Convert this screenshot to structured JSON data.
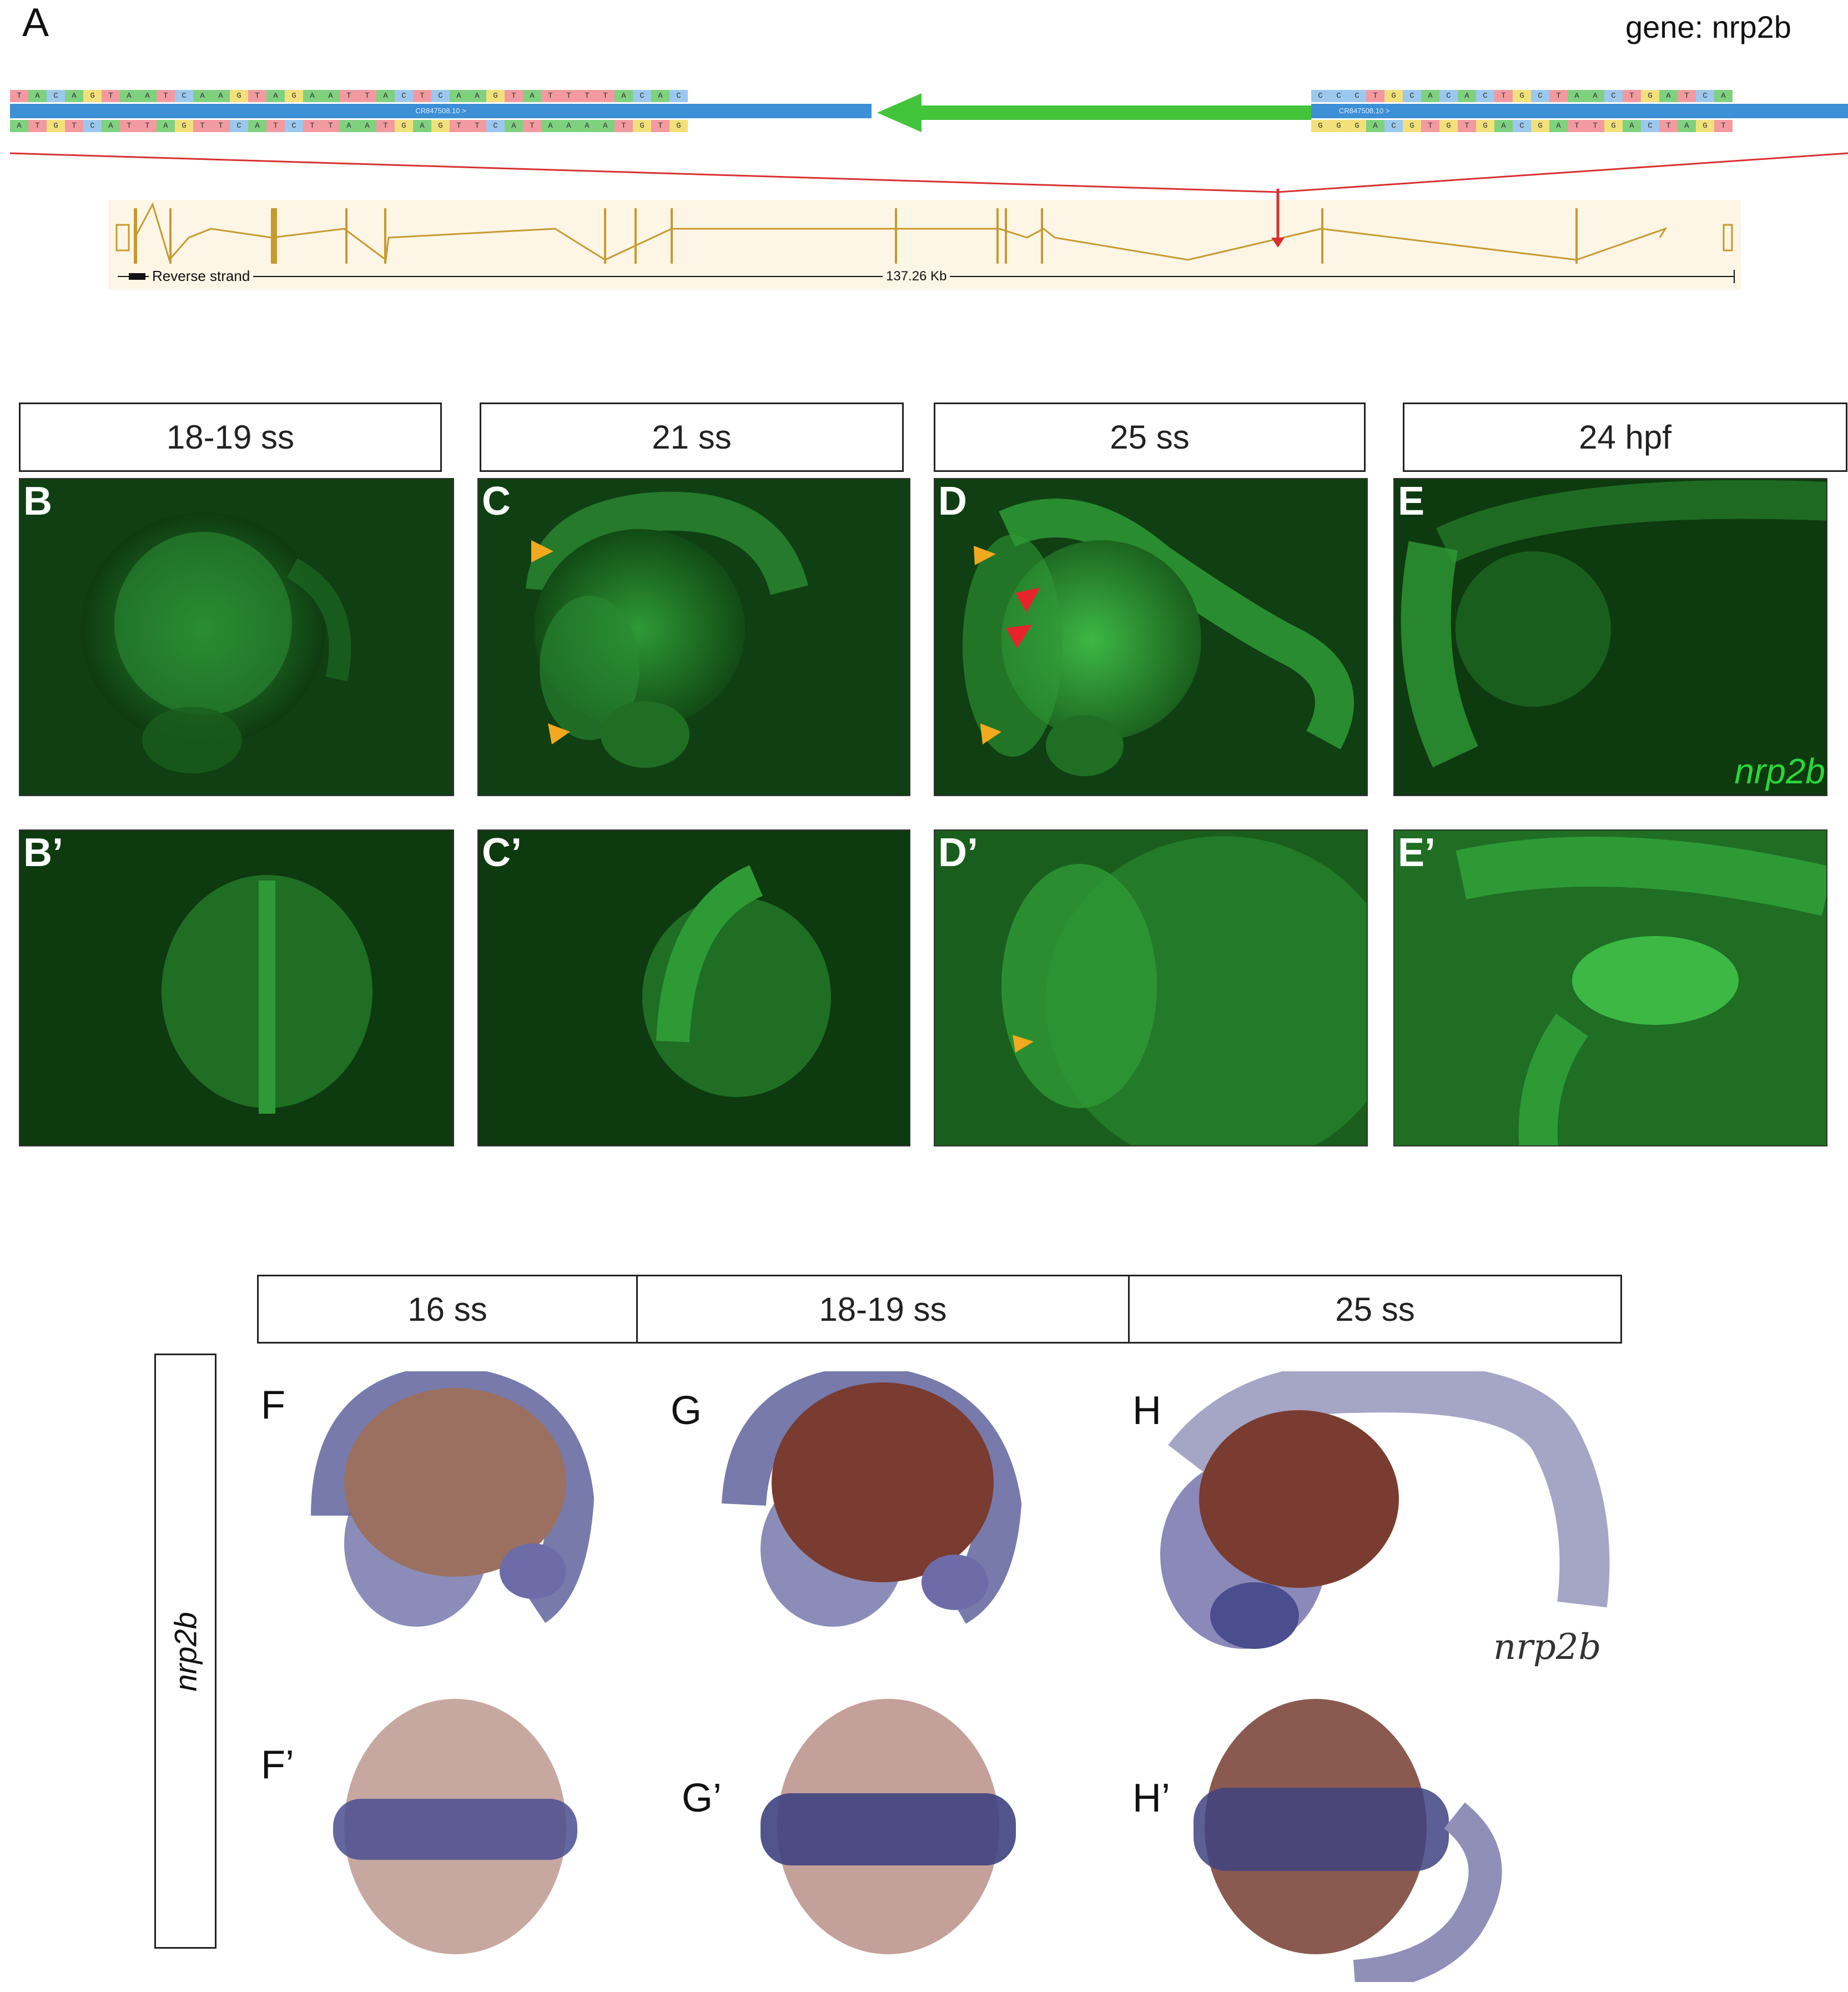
{
  "panel_a": {
    "label": "A",
    "gene_label": "gene: nrp2b",
    "seq_left_top": "TACAGTAATCAAGTAGAATTACTCAAGTATTTTACAC",
    "seq_left_bottom": "ATGTCATTAGTTCATCTTAATGAGTTCATAAAATGTG",
    "seq_right_top": "CCCTGCACACTGCTAACTGATCA",
    "seq_right_bottom": "GGGACGTGTGACGATTGACTAGT",
    "contig_left": "CR847508.10 >",
    "contig_right": "CR847508.10 >",
    "strand_label": "Reverse strand",
    "scale_label": "137.26 Kb"
  },
  "fluorescent_headers": [
    "18-19 ss",
    "21 ss",
    "25 ss",
    "24 hpf"
  ],
  "fluorescent_panels_top": [
    "B",
    "C",
    "D",
    "E"
  ],
  "fluorescent_panels_bottom": [
    "B’",
    "C’",
    "D’",
    "E’"
  ],
  "fluorescent_gene_label": "nrp2b",
  "ish_headers": [
    "16 ss",
    "18-19 ss",
    "25 ss"
  ],
  "ish_row_label": "nrp2b",
  "ish_panels_top": [
    "F",
    "G",
    "H"
  ],
  "ish_panels_bottom": [
    "F’",
    "G’",
    "H’"
  ],
  "ish_gene_label": "nrp2b",
  "colors": {
    "fluorescence": "#2bd63a",
    "arrow_orange": "#f2a91f",
    "arrow_red": "#e8242a",
    "ish_stain": "#4a4e8f",
    "yolk": "#8a4a3e"
  }
}
